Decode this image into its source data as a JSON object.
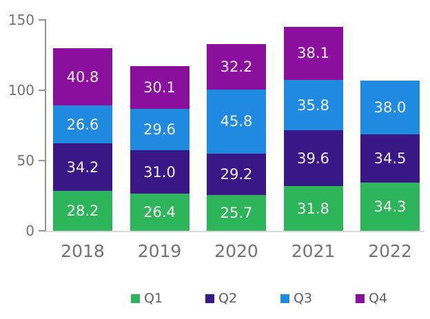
{
  "chart_data": {
    "type": "bar",
    "stacked": true,
    "title": "",
    "xlabel": "",
    "ylabel": "",
    "categories": [
      "2018",
      "2019",
      "2020",
      "2021",
      "2022"
    ],
    "series": [
      {
        "name": "Q1",
        "color": "#2EB45A",
        "values": [
          28.2,
          26.4,
          25.7,
          31.8,
          34.3
        ]
      },
      {
        "name": "Q2",
        "color": "#3A1786",
        "values": [
          34.2,
          31.0,
          29.2,
          39.6,
          34.5
        ]
      },
      {
        "name": "Q3",
        "color": "#1F8AE0",
        "values": [
          26.6,
          29.6,
          45.8,
          35.8,
          38.0
        ]
      },
      {
        "name": "Q4",
        "color": "#8C0E9E",
        "values": [
          40.8,
          30.1,
          32.2,
          38.1,
          null
        ]
      }
    ],
    "ylim": [
      0,
      150
    ],
    "yticks": [
      "0",
      "50",
      "100",
      "150"
    ],
    "grid": false,
    "legend_position": "bottom",
    "data_labels_decimals": 1,
    "colors": {
      "data_label_text": "#F2F2F2",
      "axis_line": "#949494",
      "tick_mark": "#949494",
      "baseline": "#D8D8D8",
      "tick_label_text": "#737373",
      "legend_text": "#5F5F5F"
    }
  }
}
